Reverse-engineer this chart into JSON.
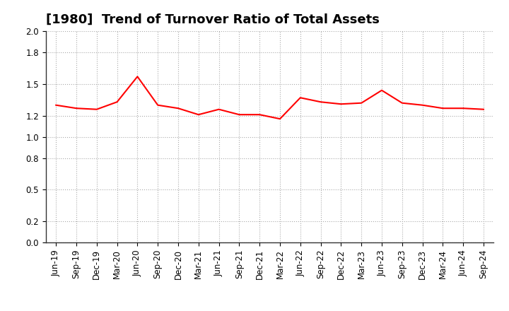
{
  "title": "[1980]  Trend of Turnover Ratio of Total Assets",
  "x_labels": [
    "Jun-19",
    "Sep-19",
    "Dec-19",
    "Mar-20",
    "Jun-20",
    "Sep-20",
    "Dec-20",
    "Mar-21",
    "Jun-21",
    "Sep-21",
    "Dec-21",
    "Mar-22",
    "Jun-22",
    "Sep-22",
    "Dec-22",
    "Mar-23",
    "Jun-23",
    "Sep-23",
    "Dec-23",
    "Mar-24",
    "Jun-24",
    "Sep-24"
  ],
  "y_values": [
    1.3,
    1.27,
    1.26,
    1.33,
    1.57,
    1.3,
    1.27,
    1.21,
    1.26,
    1.21,
    1.21,
    1.17,
    1.37,
    1.33,
    1.31,
    1.32,
    1.44,
    1.32,
    1.3,
    1.27,
    1.27,
    1.26
  ],
  "line_color": "#FF0000",
  "line_width": 1.5,
  "ylim": [
    0.0,
    2.0
  ],
  "yticks": [
    0.0,
    0.2,
    0.5,
    0.8,
    1.0,
    1.2,
    1.5,
    1.8,
    2.0
  ],
  "grid_color": "#aaaaaa",
  "background_color": "#ffffff",
  "title_fontsize": 13,
  "tick_fontsize": 8.5
}
